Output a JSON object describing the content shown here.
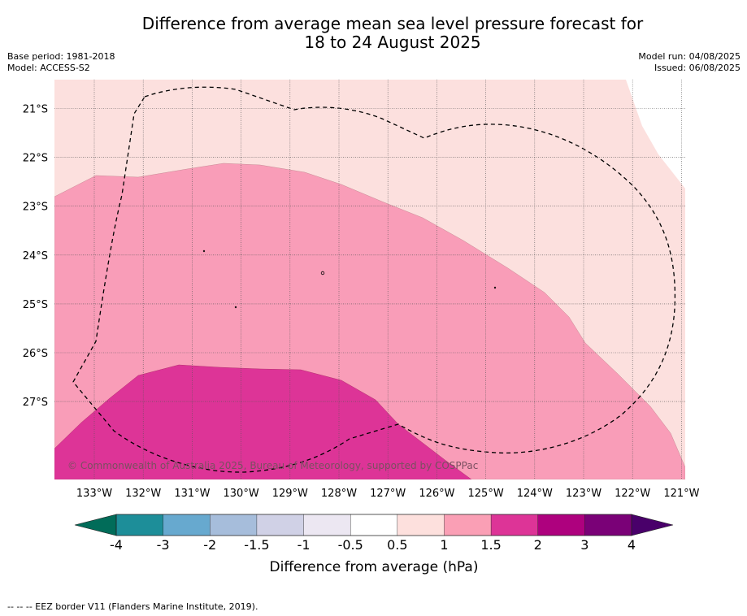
{
  "title": {
    "line1": "Difference from average mean sea level pressure forecast for",
    "line2": "18 to 24 August 2025"
  },
  "meta": {
    "base_period": "Base period: 1981-2018",
    "model": "Model: ACCESS-S2",
    "model_run": "Model run: 04/08/2025",
    "issued": "Issued: 06/08/2025"
  },
  "map": {
    "lat_labels": [
      "21°S",
      "22°S",
      "23°S",
      "24°S",
      "25°S",
      "26°S",
      "27°S"
    ],
    "lon_labels": [
      "133°W",
      "132°W",
      "131°W",
      "130°W",
      "129°W",
      "128°W",
      "127°W",
      "126°W",
      "125°W",
      "124°W",
      "123°W",
      "122°W",
      "121°W"
    ],
    "copyright": "© Commonwealth of Australia 2025, Bureau of Meteorology, supported by COSPPac",
    "colors": {
      "band_0_5_1": "#fce0de",
      "band_1_1_5": "#f99db8",
      "band_1_5_2": "#dd3497",
      "eez_border": "#000000"
    }
  },
  "colorbar": {
    "ticks": [
      "-4",
      "-3",
      "-2",
      "-1.5",
      "-1",
      "-0.5",
      "0.5",
      "1",
      "1.5",
      "2",
      "3",
      "4"
    ],
    "colors": [
      "#1d8e99",
      "#67a9cf",
      "#a6bddb",
      "#d0d1e6",
      "#ece7f2",
      "#ffffff",
      "#fde0dd",
      "#fa9fb5",
      "#dd3497",
      "#ae017e",
      "#7a0177"
    ],
    "under_color": "#016c59",
    "over_color": "#49006a",
    "label": "Difference from average (hPa)"
  },
  "legend_note": "--  --  -- EEZ border V11 (Flanders Marine Institute, 2019)."
}
